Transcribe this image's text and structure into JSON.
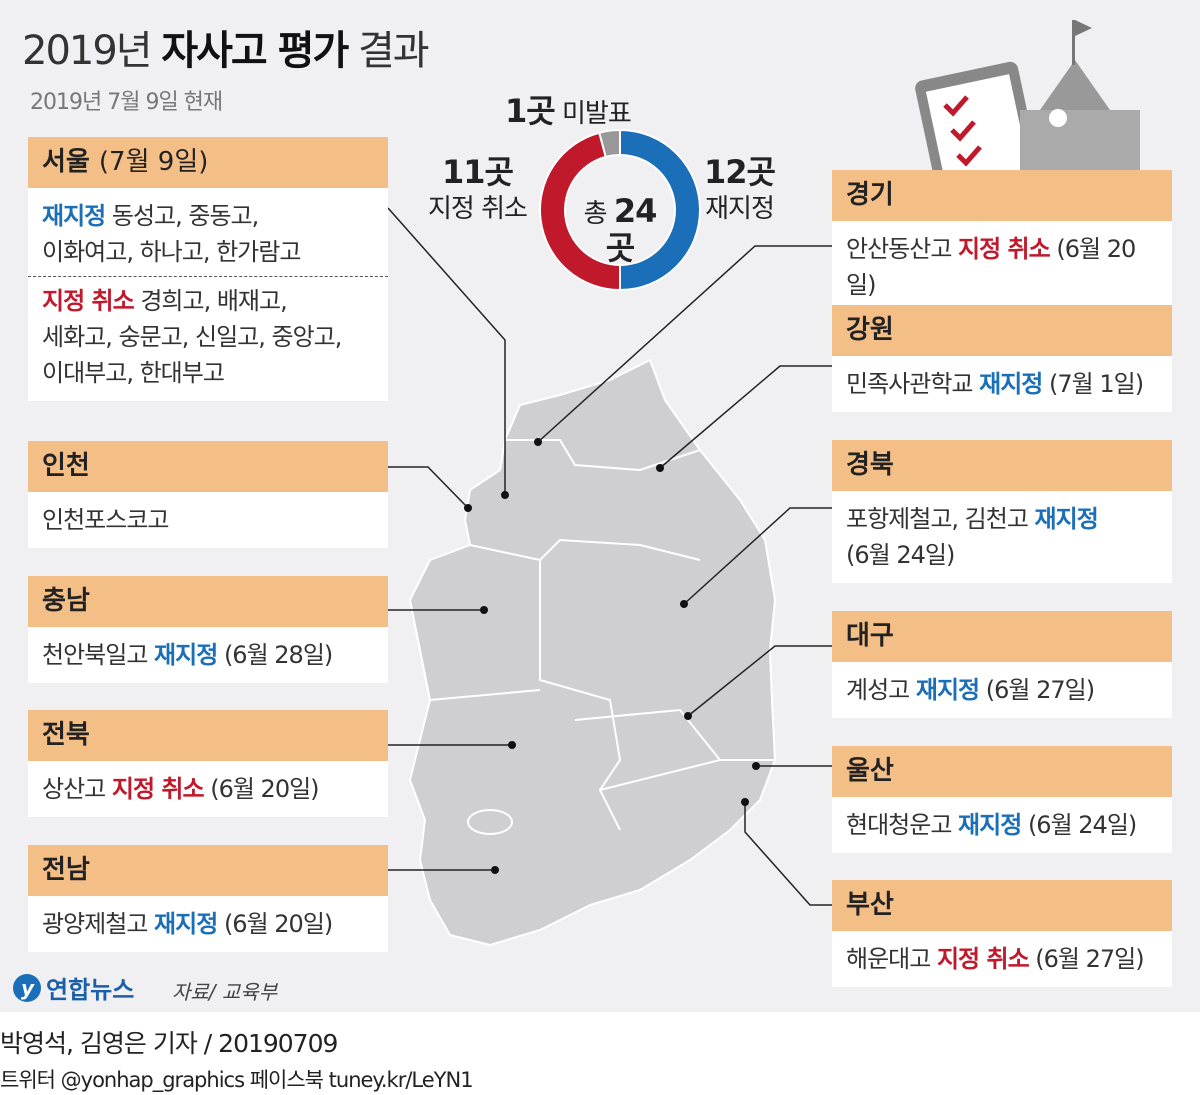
{
  "title": {
    "year": "2019년",
    "bold": "자사고 평가",
    "rest": "결과"
  },
  "subtitle": "2019년 7월 9일 현재",
  "chart_data": {
    "type": "pie",
    "title": "총 24곳",
    "categories": [
      "재지정",
      "지정 취소",
      "미발표"
    ],
    "values": [
      12,
      11,
      1
    ],
    "labels": [
      "12곳",
      "11곳",
      "1곳"
    ],
    "colors": [
      "#1a6fb8",
      "#c0192c",
      "#999999"
    ],
    "center_prefix": "총",
    "center_value": "24곳"
  },
  "regions": {
    "seoul": {
      "name": "서울",
      "date": "(7월 9일)",
      "kw1": "재지정",
      "list1a": "동성고, 중동고,",
      "list1b": "이화여고, 하나고, 한가람고",
      "kw2": "지정 취소",
      "list2a": "경희고, 배재고,",
      "list2b": "세화고, 숭문고, 신일고, 중앙고,",
      "list2c": "이대부고, 한대부고"
    },
    "incheon": {
      "name": "인천",
      "school": "인천포스코고"
    },
    "chungnam": {
      "name": "충남",
      "school": "천안북일고",
      "kw": "재지정",
      "date": "(6월 28일)"
    },
    "jeonbuk": {
      "name": "전북",
      "school": "상산고",
      "kw": "지정 취소",
      "date": "(6월 20일)"
    },
    "jeonnam": {
      "name": "전남",
      "school": "광양제철고",
      "kw": "재지정",
      "date": "(6월 20일)"
    },
    "gyeonggi": {
      "name": "경기",
      "school": "안산동산고",
      "kw": "지정 취소",
      "date": "(6월 20일)"
    },
    "gangwon": {
      "name": "강원",
      "school": "민족사관학교",
      "kw": "재지정",
      "date": "(7월 1일)"
    },
    "gyeongbuk": {
      "name": "경북",
      "school": "포항제철고, 김천고",
      "kw": "재지정",
      "date": "(6월 24일)"
    },
    "daegu": {
      "name": "대구",
      "school": "계성고",
      "kw": "재지정",
      "date": "(6월 27일)"
    },
    "ulsan": {
      "name": "울산",
      "school": "현대청운고",
      "kw": "재지정",
      "date": "(6월 24일)"
    },
    "busan": {
      "name": "부산",
      "school": "해운대고",
      "kw": "지정 취소",
      "date": "(6월 27일)"
    }
  },
  "logo": "연합뉴스",
  "source": "자료/ 교육부",
  "footer": {
    "byline": "박영석, 김영은 기자 / 20190709",
    "social": "트위터 @yonhap_graphics  페이스북 tuney.kr/LeYN1"
  }
}
